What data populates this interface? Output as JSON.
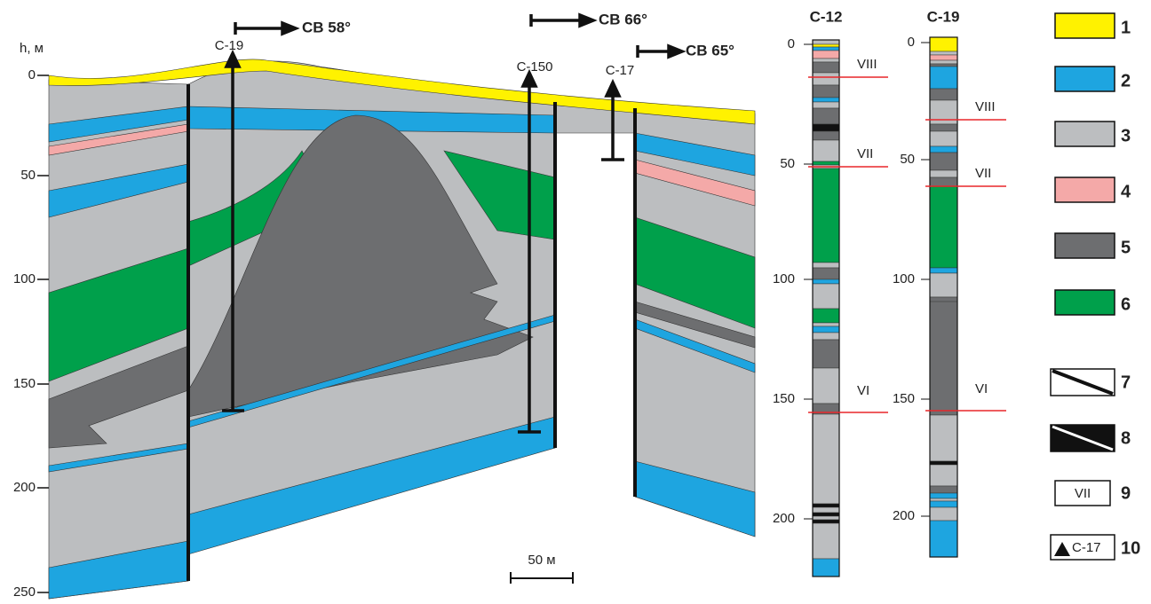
{
  "section": {
    "y_axis_label": "h, м",
    "y_ticks": [
      "0",
      "50",
      "100",
      "150",
      "200",
      "250"
    ],
    "wells": [
      "С-19",
      "С-150",
      "С-17"
    ],
    "azimuths": [
      "СВ 58°",
      "СВ 66°",
      "СВ 65°"
    ],
    "scale_bar": "50 м"
  },
  "columns": [
    {
      "title": "С-12",
      "ticks": [
        "0",
        "50",
        "100",
        "150",
        "200"
      ],
      "horizons": [
        "VIII",
        "VII",
        "VI"
      ]
    },
    {
      "title": "С-19",
      "ticks": [
        "0",
        "50",
        "100",
        "150",
        "200"
      ],
      "horizons": [
        "VIII",
        "VII",
        "VI"
      ]
    }
  ],
  "legend": {
    "numbers": [
      "1",
      "2",
      "3",
      "4",
      "5",
      "6",
      "7",
      "8",
      "9",
      "10"
    ],
    "horizon_sample": "VII",
    "well_sample": "С-17"
  }
}
